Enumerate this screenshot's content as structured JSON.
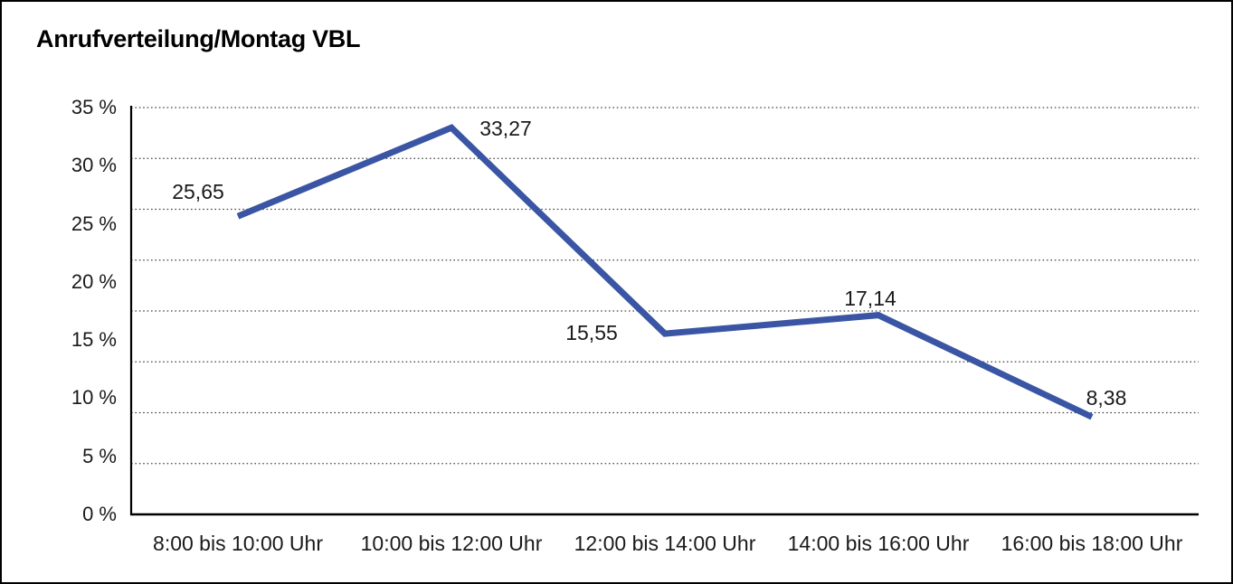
{
  "page": {
    "background": "#ffffff",
    "border_color": "#000000"
  },
  "chart_data": {
    "type": "line",
    "title": "Anrufverteilung/Montag VBL",
    "categories": [
      "8:00 bis 10:00 Uhr",
      "10:00 bis 12:00 Uhr",
      "12:00 bis 14:00 Uhr",
      "14:00 bis 16:00 Uhr",
      "16:00 bis 18:00 Uhr"
    ],
    "values": [
      25.65,
      33.27,
      15.55,
      17.14,
      8.38
    ],
    "value_labels": [
      "25,65",
      "33,27",
      "15,55",
      "17,14",
      "8,38"
    ],
    "y_tick_labels": [
      "35 %",
      "30 %",
      "25 %",
      "20 %",
      "15 %",
      "10 %",
      "5 %",
      "0 %"
    ],
    "ylim": [
      0,
      35
    ],
    "xlabel": "",
    "ylabel": "",
    "legend_position": "none",
    "grid": "horizontal-dotted",
    "gridline_count_dotted": 8,
    "line_color": "#3A55A4",
    "axis_color": "#000000",
    "gridline_color": "#444444",
    "text_color": "#1a1a1a"
  }
}
